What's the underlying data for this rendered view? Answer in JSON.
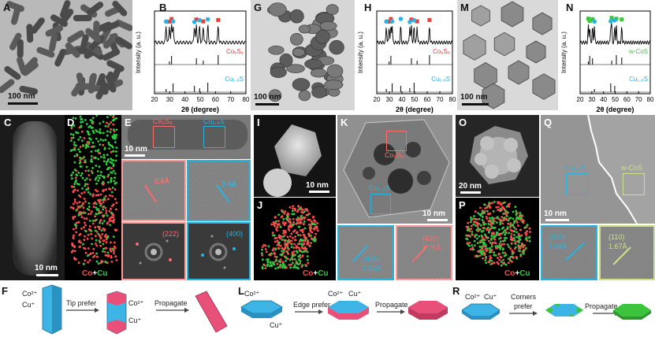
{
  "panels": {
    "A": {
      "label": "A",
      "scalebar": "100 nm"
    },
    "B": {
      "label": "B",
      "ylabel": "Intensity (a. u.)",
      "xlabel": "2θ (degree)",
      "ref1": "Co₉S₈",
      "ref2": "Cu₁.₈S"
    },
    "C": {
      "label": "C",
      "scalebar": "10 nm"
    },
    "D": {
      "label": "D",
      "legend_co": "Co",
      "legend_plus": "+",
      "legend_cu": "Cu"
    },
    "E": {
      "label": "E",
      "scalebar": "10 nm",
      "box1": "Co₉S₈",
      "box2": "Cu₁.₈S",
      "d1": "2.9Å",
      "d2": "3.0Å",
      "fft1": "(222)",
      "fft2": "(400)"
    },
    "G": {
      "label": "G",
      "scalebar": "100 nm"
    },
    "H": {
      "label": "H",
      "ylabel": "Intensity (a. u.)",
      "xlabel": "2θ (degree)",
      "ref1": "Co₉S₈",
      "ref2": "Cu₁.₈S"
    },
    "I": {
      "label": "I",
      "scalebar": "10 nm"
    },
    "J": {
      "label": "J",
      "legend_co": "Co",
      "legend_plus": "+",
      "legend_cu": "Cu"
    },
    "K": {
      "label": "K",
      "scalebar": "10 nm",
      "box1": "Co₉S₈",
      "box2": "Cu₁.₈S",
      "d1": "(400)",
      "d1b": "1.94Å",
      "d2": "(440)",
      "d2b": "1.75Å"
    },
    "M": {
      "label": "M",
      "scalebar": "100 nm"
    },
    "N": {
      "label": "N",
      "ylabel": "Intensity (a. u.)",
      "xlabel": "2θ (degree)",
      "ref1": "w-CoS",
      "ref2": "Cu₁.₈S"
    },
    "O": {
      "label": "O",
      "scalebar": "20 nm"
    },
    "P": {
      "label": "P",
      "legend_co": "Co",
      "legend_plus": "+",
      "legend_cu": "Cu"
    },
    "Q": {
      "label": "Q",
      "scalebar": "10 nm",
      "box1": "Cu₁.₈S",
      "box2": "w-CoS",
      "d1": "(200)",
      "d1b": "1.98Å",
      "d2": "(110)",
      "d2b": "1.67Å"
    },
    "F": {
      "label": "F",
      "step1": "Tip prefer",
      "step2": "Propagate",
      "ion1": "Co²⁺",
      "ion2": "Cu⁺",
      "ion3": "Co²⁺",
      "ion4": "Cu⁺"
    },
    "L": {
      "label": "L",
      "step1": "Edge prefer",
      "step2": "Propagate",
      "ion1": "Co²⁺",
      "ion2": "Cu⁺",
      "ion3": "Cu⁺",
      "ion4": "Co²⁺"
    },
    "R": {
      "label": "R",
      "step1": "Corners",
      "step1b": "prefer",
      "step2": "Propagate",
      "ion1": "Co²⁺",
      "ion2": "Cu⁺"
    }
  },
  "xrd_ticks": [
    "20",
    "30",
    "40",
    "50",
    "60",
    "70",
    "80"
  ],
  "chart_data": [
    {
      "type": "line",
      "panel": "B",
      "xlabel": "2θ (degree)",
      "ylabel": "Intensity (a. u.)",
      "xlim": [
        20,
        80
      ],
      "x_ticks": [
        20,
        30,
        40,
        50,
        60,
        70,
        80
      ],
      "references": [
        "Co₉S₈",
        "Cu₁.₈S"
      ],
      "markers_co9s8": [
        29.8,
        31.2,
        47.5,
        52.0,
        61.8
      ],
      "markers_cu18s": [
        27.6,
        32.2,
        46.2,
        49.6,
        55.0
      ]
    },
    {
      "type": "line",
      "panel": "H",
      "xlabel": "2θ (degree)",
      "ylabel": "Intensity (a. u.)",
      "xlim": [
        20,
        80
      ],
      "x_ticks": [
        20,
        30,
        40,
        50,
        60,
        70,
        80
      ],
      "references": [
        "Co₉S₈",
        "Cu₁.₈S"
      ],
      "markers_co9s8": [
        29.8,
        31.2,
        47.5,
        52.0,
        61.8
      ],
      "markers_cu18s": [
        27.6,
        32.2,
        39.0,
        46.2,
        49.6
      ]
    },
    {
      "type": "line",
      "panel": "N",
      "xlabel": "2θ (degree)",
      "ylabel": "Intensity (a. u.)",
      "xlim": [
        20,
        80
      ],
      "x_ticks": [
        20,
        30,
        40,
        50,
        60,
        70,
        80
      ],
      "references": [
        "w-CoS",
        "Cu₁.₈S"
      ],
      "markers_wcos": [
        27.0,
        28.2,
        30.6,
        47.0,
        51.0,
        55.6
      ],
      "markers_cu18s": [
        32.2,
        46.2,
        49.6
      ]
    }
  ],
  "colors": {
    "co": "#ff4d4d",
    "cu": "#2ecc40",
    "cu_blue": "#27b4e0",
    "co_red": "#e8413c",
    "wcos_green": "#3dc43d",
    "rod_pink": "#e8507a",
    "rod_blue": "#3cb4e6"
  }
}
